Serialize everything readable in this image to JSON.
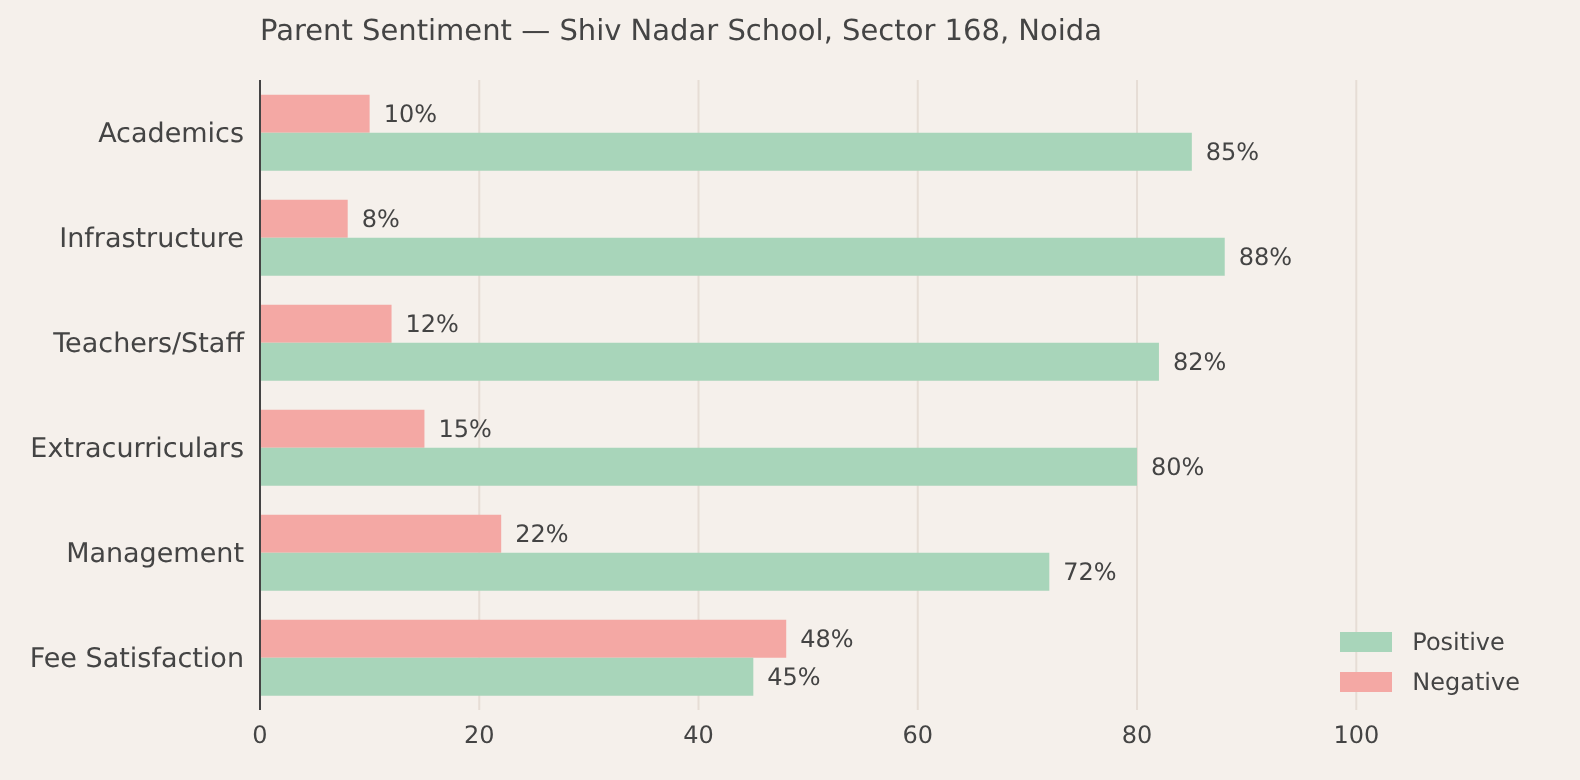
{
  "chart_data": {
    "type": "bar",
    "orientation": "horizontal",
    "title": "Parent Sentiment — Shiv Nadar School, Sector 168, Noida",
    "categories": [
      "Academics",
      "Infrastructure",
      "Teachers/Staff",
      "Extracurriculars",
      "Management",
      "Fee Satisfaction"
    ],
    "series": [
      {
        "name": "Positive",
        "color": "#a8d5ba",
        "values": [
          85,
          88,
          82,
          80,
          72,
          45
        ],
        "value_labels": [
          "85%",
          "88%",
          "82%",
          "80%",
          "72%",
          "45%"
        ]
      },
      {
        "name": "Negative",
        "color": "#f4a8a4",
        "values": [
          10,
          8,
          12,
          15,
          22,
          48
        ],
        "value_labels": [
          "10%",
          "8%",
          "12%",
          "15%",
          "22%",
          "48%"
        ]
      }
    ],
    "xlim": [
      0,
      100
    ],
    "xticks": [
      0,
      20,
      40,
      60,
      80,
      100
    ],
    "grid": "x",
    "legend": "bottom right"
  }
}
